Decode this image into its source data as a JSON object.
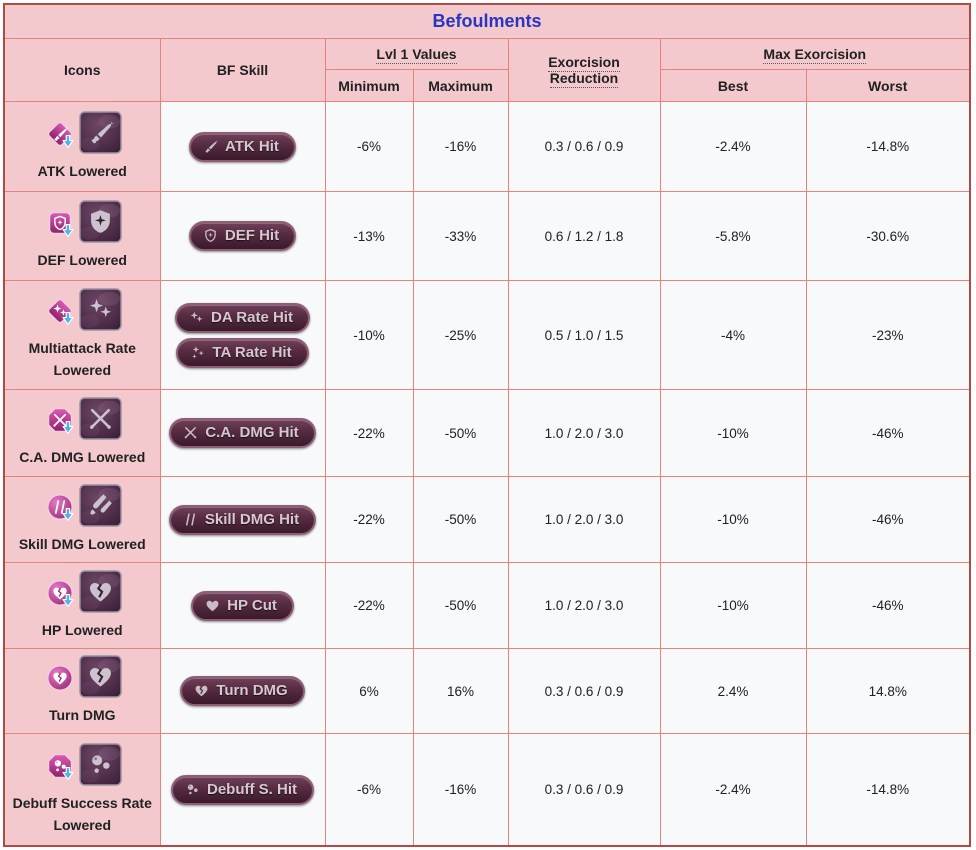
{
  "title": "Befoulments",
  "colors": {
    "title_blue": "#2836c4",
    "header_pink": "#f4c9ce",
    "grid_salmon": "#e8837a",
    "outer_border": "#b04a42",
    "cell_bg": "#f8f9fa",
    "badge_maroon": "#552b41",
    "badge_text": "#d5c8cf",
    "status_magenta": "#a8267d",
    "arrow_blue": "#4fb0f2",
    "large_icon_purple": "#3a2136"
  },
  "header": {
    "icons": "Icons",
    "bf_skill": "BF Skill",
    "lvl1_values": "Lvl 1 Values",
    "minimum": "Minimum",
    "maximum": "Maximum",
    "exorcision": "Exorcision",
    "reduction": "Reduction",
    "max_exorcision": "Max Exorcision",
    "best": "Best",
    "worst": "Worst"
  },
  "rows": [
    {
      "label": "ATK Lowered",
      "icon": {
        "shape": "diamond",
        "glyph": "sword",
        "arrow": true,
        "large_glyph": "sword"
      },
      "badges": [
        {
          "glyph": "sword",
          "label": "ATK Hit"
        }
      ],
      "minimum": "-6%",
      "maximum": "-16%",
      "exorcision_reduction": "0.3 / 0.6 / 0.9",
      "best": "-2.4%",
      "worst": "-14.8%"
    },
    {
      "label": "DEF Lowered",
      "icon": {
        "shape": "square",
        "glyph": "shield",
        "arrow": true,
        "large_glyph": "shield-star"
      },
      "badges": [
        {
          "glyph": "shield",
          "label": "DEF Hit"
        }
      ],
      "minimum": "-13%",
      "maximum": "-33%",
      "exorcision_reduction": "0.6 / 1.2 / 1.8",
      "best": "-5.8%",
      "worst": "-30.6%"
    },
    {
      "label": "Multiattack Rate Lowered",
      "icon": {
        "shape": "diamond",
        "glyph": "spark2",
        "arrow": true,
        "large_glyph": "spark2"
      },
      "badges": [
        {
          "glyph": "spark2",
          "label": "DA Rate Hit"
        },
        {
          "glyph": "spark3",
          "label": "TA Rate Hit"
        }
      ],
      "minimum": "-10%",
      "maximum": "-25%",
      "exorcision_reduction": "0.5 / 1.0 / 1.5",
      "best": "-4%",
      "worst": "-23%"
    },
    {
      "label": "C.A. DMG Lowered",
      "icon": {
        "shape": "octagon",
        "glyph": "xswords",
        "arrow": true,
        "large_glyph": "xswords"
      },
      "badges": [
        {
          "glyph": "xswords",
          "label": "C.A. DMG Hit"
        }
      ],
      "minimum": "-22%",
      "maximum": "-50%",
      "exorcision_reduction": "1.0 / 2.0 / 3.0",
      "best": "-10%",
      "worst": "-46%"
    },
    {
      "label": "Skill DMG Lowered",
      "icon": {
        "shape": "circle",
        "glyph": "dslash",
        "arrow": true,
        "large_glyph": "dagger2"
      },
      "badges": [
        {
          "glyph": "dslash",
          "label": "Skill DMG Hit"
        }
      ],
      "minimum": "-22%",
      "maximum": "-50%",
      "exorcision_reduction": "1.0 / 2.0 / 3.0",
      "best": "-10%",
      "worst": "-46%"
    },
    {
      "label": "HP Lowered",
      "icon": {
        "shape": "circle",
        "glyph": "bheart",
        "arrow": true,
        "large_glyph": "bheart"
      },
      "badges": [
        {
          "glyph": "heart",
          "label": "HP Cut"
        }
      ],
      "minimum": "-22%",
      "maximum": "-50%",
      "exorcision_reduction": "1.0 / 2.0 / 3.0",
      "best": "-10%",
      "worst": "-46%"
    },
    {
      "label": "Turn DMG",
      "icon": {
        "shape": "circle",
        "glyph": "bheart",
        "arrow": false,
        "large_glyph": "bheart"
      },
      "badges": [
        {
          "glyph": "bheart",
          "label": "Turn DMG"
        }
      ],
      "minimum": "6%",
      "maximum": "16%",
      "exorcision_reduction": "0.3 / 0.6 / 0.9",
      "best": "2.4%",
      "worst": "14.8%"
    },
    {
      "label": "Debuff Success Rate Lowered",
      "icon": {
        "shape": "octagon",
        "glyph": "bubbles",
        "arrow": true,
        "large_glyph": "bubbles"
      },
      "badges": [
        {
          "glyph": "bubbles",
          "label": "Debuff S. Hit"
        }
      ],
      "minimum": "-6%",
      "maximum": "-16%",
      "exorcision_reduction": "0.3 / 0.6 / 0.9",
      "best": "-2.4%",
      "worst": "-14.8%"
    }
  ]
}
